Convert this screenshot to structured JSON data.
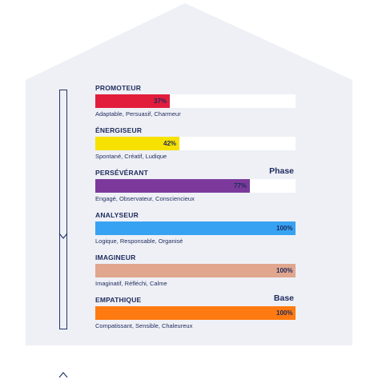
{
  "chart_data": {
    "type": "bar",
    "orientation": "horizontal",
    "xlim": [
      0,
      100
    ],
    "categories": [
      "PROMOTEUR",
      "ÉNERGISEUR",
      "PERSÉVÉRANT",
      "ANALYSEUR",
      "IMAGINEUR",
      "EMPATHIQUE"
    ],
    "values": [
      37,
      42,
      77,
      100,
      100,
      100
    ],
    "value_labels": [
      "37%",
      "42%",
      "77%",
      "100%",
      "100%",
      "100%"
    ],
    "colors": [
      "#e21d3c",
      "#f6e100",
      "#7b3a9b",
      "#37a2f2",
      "#e0a68e",
      "#ff7a10"
    ],
    "traits": [
      "Adaptable, Persuasif, Charmeur",
      "Spontané, Créatif, Ludique",
      "Engagé, Observateur, Consciencieux",
      "Logique, Responsable, Organisé",
      "Imaginatif, Réfléchi, Calme",
      "Compatissant, Sensible, Chaleureux"
    ],
    "markers": {
      "phase": "Phase",
      "base": "Base"
    },
    "marker_rows": {
      "phase": 2,
      "base": 5
    }
  }
}
